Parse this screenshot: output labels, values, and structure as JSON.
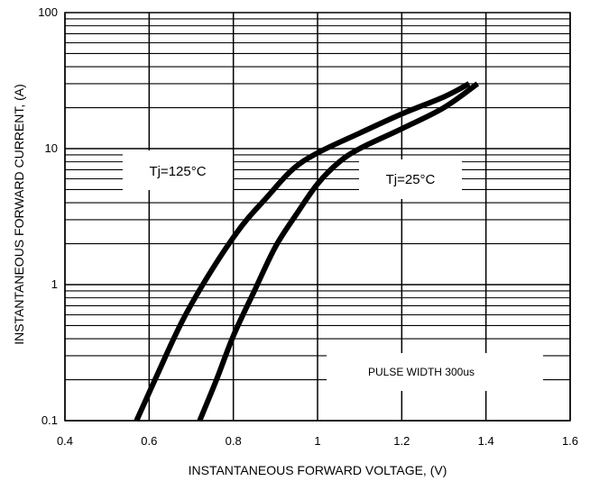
{
  "chart_data": {
    "type": "line",
    "title": "",
    "xlabel": "INSTANTANEOUS FORWARD VOLTAGE, (V)",
    "ylabel": "INSTANTANEOUS FORWARD CURRENT, (A)",
    "xlim": [
      0.4,
      1.6
    ],
    "ylim": [
      0.1,
      100
    ],
    "yscale": "log",
    "grid": true,
    "x_ticks": [
      "0.4",
      "0.6",
      "0.8",
      "1",
      "1.2",
      "1.4",
      "1.6"
    ],
    "y_ticks": [
      "0.1",
      "1",
      "10",
      "100"
    ],
    "series": [
      {
        "name": "Tj=125°C",
        "points": [
          [
            0.57,
            0.1
          ],
          [
            0.62,
            0.22
          ],
          [
            0.68,
            0.55
          ],
          [
            0.75,
            1.3
          ],
          [
            0.82,
            2.7
          ],
          [
            0.88,
            4.4
          ],
          [
            0.94,
            7.0
          ],
          [
            1.0,
            9.3
          ],
          [
            1.1,
            13.0
          ],
          [
            1.2,
            18.0
          ],
          [
            1.3,
            24.0
          ],
          [
            1.36,
            30.0
          ]
        ]
      },
      {
        "name": "Tj=25°C",
        "points": [
          [
            0.72,
            0.1
          ],
          [
            0.76,
            0.2
          ],
          [
            0.8,
            0.42
          ],
          [
            0.85,
            0.9
          ],
          [
            0.9,
            1.9
          ],
          [
            0.95,
            3.3
          ],
          [
            1.0,
            5.5
          ],
          [
            1.05,
            7.9
          ],
          [
            1.1,
            10.0
          ],
          [
            1.2,
            14.0
          ],
          [
            1.3,
            20.0
          ],
          [
            1.38,
            30.0
          ]
        ]
      }
    ],
    "annotations": [
      "Tj=125°C",
      "Tj=25°C",
      "PULSE WIDTH 300us"
    ],
    "colors": {
      "line": "#000000",
      "grid": "#000000",
      "background": "#ffffff"
    }
  }
}
